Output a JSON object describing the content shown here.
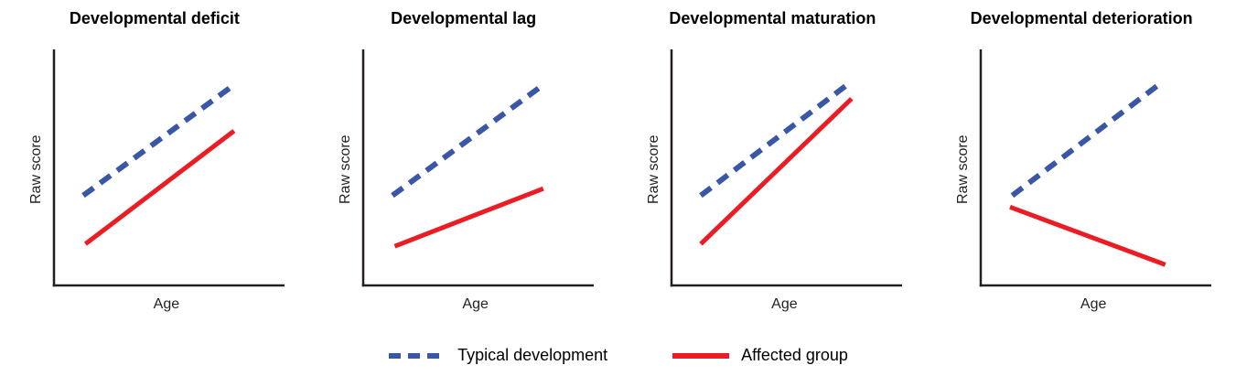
{
  "chart_data": [
    {
      "type": "line",
      "title": "Developmental deficit",
      "xlabel": "Age",
      "ylabel": "Raw score",
      "axes": {
        "ticks": false,
        "schematic": true
      },
      "series": [
        {
          "name": "Typical development",
          "style": "dashed",
          "color": "#3A56A7",
          "x": [
            0.13,
            0.8
          ],
          "y": [
            0.39,
            0.87
          ]
        },
        {
          "name": "Affected group",
          "style": "solid",
          "color": "#EC1C24",
          "x": [
            0.14,
            0.8
          ],
          "y": [
            0.18,
            0.67
          ]
        }
      ]
    },
    {
      "type": "line",
      "title": "Developmental lag",
      "xlabel": "Age",
      "ylabel": "Raw score",
      "axes": {
        "ticks": false,
        "schematic": true
      },
      "series": [
        {
          "name": "Typical development",
          "style": "dashed",
          "color": "#3A56A7",
          "x": [
            0.13,
            0.8
          ],
          "y": [
            0.39,
            0.87
          ]
        },
        {
          "name": "Affected group",
          "style": "solid",
          "color": "#EC1C24",
          "x": [
            0.14,
            0.8
          ],
          "y": [
            0.17,
            0.42
          ]
        }
      ]
    },
    {
      "type": "line",
      "title": "Developmental maturation",
      "xlabel": "Age",
      "ylabel": "Raw score",
      "axes": {
        "ticks": false,
        "schematic": true
      },
      "series": [
        {
          "name": "Typical development",
          "style": "dashed",
          "color": "#3A56A7",
          "x": [
            0.13,
            0.78
          ],
          "y": [
            0.39,
            0.87
          ]
        },
        {
          "name": "Affected group",
          "style": "solid",
          "color": "#EC1C24",
          "x": [
            0.13,
            0.8
          ],
          "y": [
            0.18,
            0.81
          ]
        }
      ]
    },
    {
      "type": "line",
      "title": "Developmental deterioration",
      "xlabel": "Age",
      "ylabel": "Raw score",
      "axes": {
        "ticks": false,
        "schematic": true
      },
      "series": [
        {
          "name": "Typical development",
          "style": "dashed",
          "color": "#3A56A7",
          "x": [
            0.14,
            0.79
          ],
          "y": [
            0.39,
            0.87
          ]
        },
        {
          "name": "Affected group",
          "style": "solid",
          "color": "#EC1C24",
          "x": [
            0.13,
            0.82
          ],
          "y": [
            0.34,
            0.09
          ]
        }
      ]
    }
  ],
  "legend": {
    "items": [
      {
        "label": "Typical development",
        "color": "#3A56A7",
        "style": "dashed"
      },
      {
        "label": "Affected group",
        "color": "#EC1C24",
        "style": "solid"
      }
    ]
  },
  "colors": {
    "axis": "#231F20",
    "text": "#000000"
  }
}
